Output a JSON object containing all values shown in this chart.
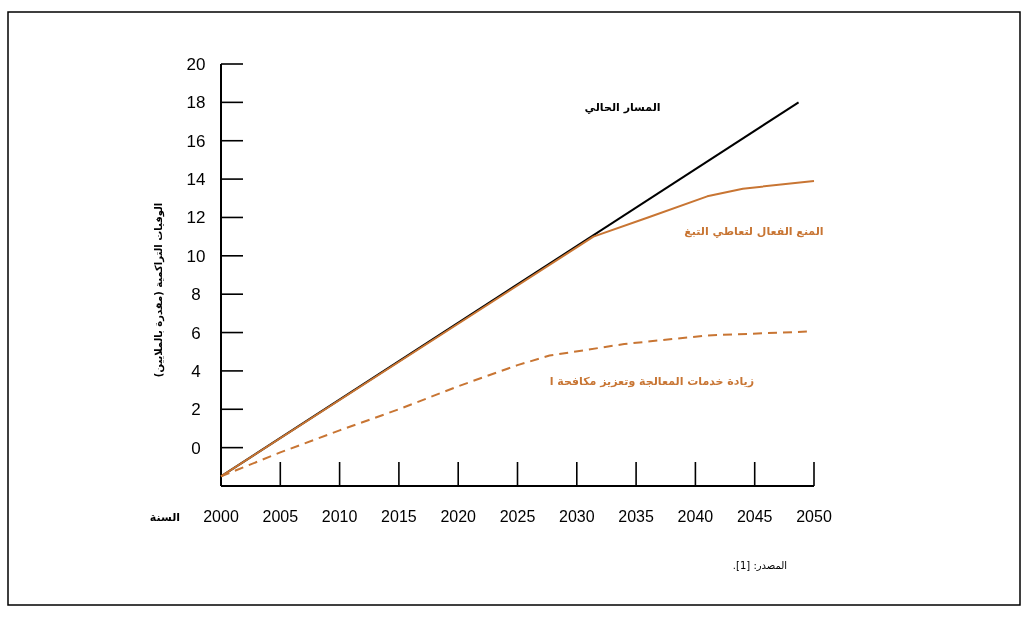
{
  "chart_data": {
    "type": "line",
    "xlabel": "السنة",
    "ylabel": "الوفيات التراكمية (مقدرة بالملايين)",
    "annotations": [
      "المصدر: [1]."
    ],
    "xlim": [
      2000,
      2050
    ],
    "ylim": [
      -2,
      20
    ],
    "xticks": [
      2000,
      2005,
      2010,
      2015,
      2020,
      2025,
      2030,
      2035,
      2040,
      2045,
      2050
    ],
    "yticks": [
      {
        "value": -2,
        "label": null
      },
      0,
      2,
      4,
      6,
      8,
      10,
      12,
      14,
      16,
      18,
      20
    ],
    "grid": false,
    "series": [
      {
        "name": "المسار الحالي",
        "color": "#000000",
        "x": [
          2000,
          2048.7
        ],
        "values": [
          -1.5,
          18
        ]
      },
      {
        "name": "المنع الفعال  لتعاطي التبغ",
        "color": "#c87533",
        "x": [
          2000,
          2031.4,
          2036,
          2041,
          2044,
          2050
        ],
        "values": [
          -1.5,
          11,
          12,
          13.1,
          13.5,
          13.9
        ]
      },
      {
        "name": "زيادة خدمات المعالجة وتعزيز مكافحة ا",
        "color": "#c87533",
        "line_style": "dashed",
        "x": [
          2000,
          2005,
          2010,
          2015,
          2020,
          2025,
          2027.7,
          2034,
          2041,
          2049.4
        ],
        "values": [
          -1.5,
          -0.25,
          0.9,
          2,
          3.2,
          4.3,
          4.8,
          5.4,
          5.85,
          6.05
        ]
      }
    ]
  }
}
